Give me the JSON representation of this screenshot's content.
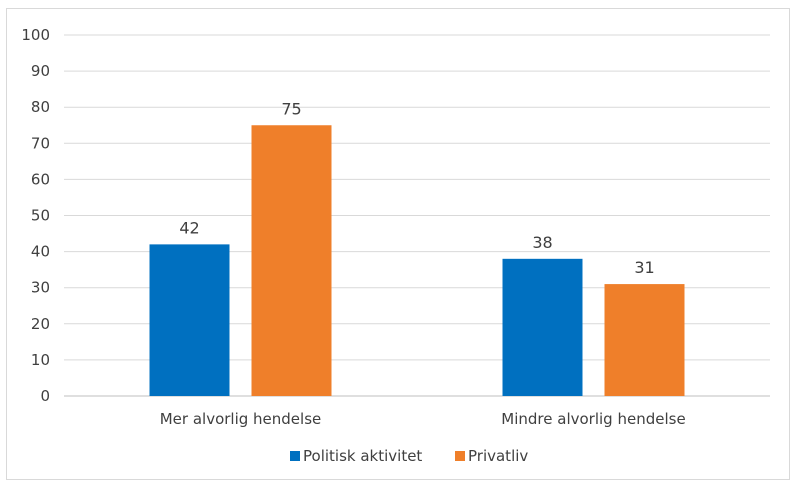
{
  "chart_data": {
    "type": "bar",
    "categories": [
      "Mer alvorlig hendelse",
      "Mindre alvorlig hendelse"
    ],
    "series": [
      {
        "name": "Politisk aktivitet",
        "values": [
          42,
          38
        ],
        "color": "#0070c0"
      },
      {
        "name": "Privatliv",
        "values": [
          75,
          31
        ],
        "color": "#ef7f2a"
      }
    ],
    "ylim": [
      0,
      100
    ],
    "yticks": [
      "0",
      "10",
      "20",
      "30",
      "40",
      "50",
      "60",
      "70",
      "80",
      "90",
      "100"
    ],
    "grid": true,
    "legend": "bottom",
    "title": "",
    "xlabel": "",
    "ylabel": ""
  }
}
